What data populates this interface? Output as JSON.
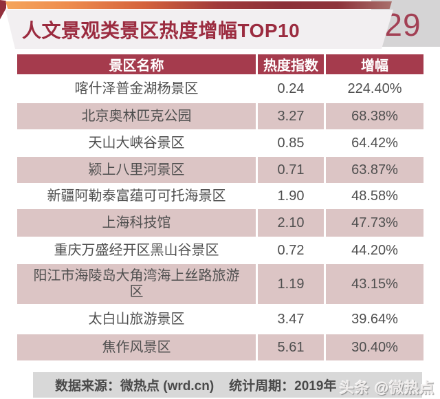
{
  "page": {
    "title": "人文景观类景区热度增幅TOP10",
    "page_number": "29"
  },
  "chart_data": {
    "type": "table",
    "title": "人文景观类景区热度增幅TOP10",
    "columns": [
      "景区名称",
      "热度指数",
      "增幅"
    ],
    "rows": [
      {
        "name": "喀什泽普金湖杨景区",
        "heat_index": 0.24,
        "growth": "224.40%"
      },
      {
        "name": "北京奥林匹克公园",
        "heat_index": 3.27,
        "growth": "68.38%"
      },
      {
        "name": "天山大峡谷景区",
        "heat_index": 0.85,
        "growth": "64.42%"
      },
      {
        "name": "颍上八里河景区",
        "heat_index": 0.71,
        "growth": "63.87%"
      },
      {
        "name": "新疆阿勒泰富蕴可可托海景区",
        "heat_index": 1.9,
        "growth": "48.58%"
      },
      {
        "name": "上海科技馆",
        "heat_index": 2.1,
        "growth": "47.73%"
      },
      {
        "name": "重庆万盛经开区黑山谷景区",
        "heat_index": 0.72,
        "growth": "44.20%"
      },
      {
        "name": "阳江市海陵岛大角湾海上丝路旅游区",
        "heat_index": 1.19,
        "growth": "43.15%"
      },
      {
        "name": "太白山旅游景区",
        "heat_index": 3.47,
        "growth": "39.64%"
      },
      {
        "name": "焦作风景区",
        "heat_index": 5.61,
        "growth": "30.40%"
      }
    ],
    "value_display": {
      "heat_index": [
        "0.24",
        "3.27",
        "0.85",
        "0.71",
        "1.90",
        "2.10",
        "0.72",
        "1.19",
        "3.47",
        "5.61"
      ]
    }
  },
  "footer": {
    "source_label": "数据来源：微热点 (wrd.cn)",
    "period_label": "统计周期：2019年",
    "watermark": "头条 @微热点"
  },
  "colors": {
    "title_maroon": "#9b2b3f",
    "header_red": "#a53b4d",
    "row_pink": "#dcc5c5",
    "banner_light": "#f2eff1",
    "footer_gray": "#d8d8d8",
    "corner_gray": "#d5d4d5",
    "ribbon_orange": "#ee8c4e",
    "ribbon_maroon": "#8c3038",
    "cell_text": "#4f4f4f"
  }
}
